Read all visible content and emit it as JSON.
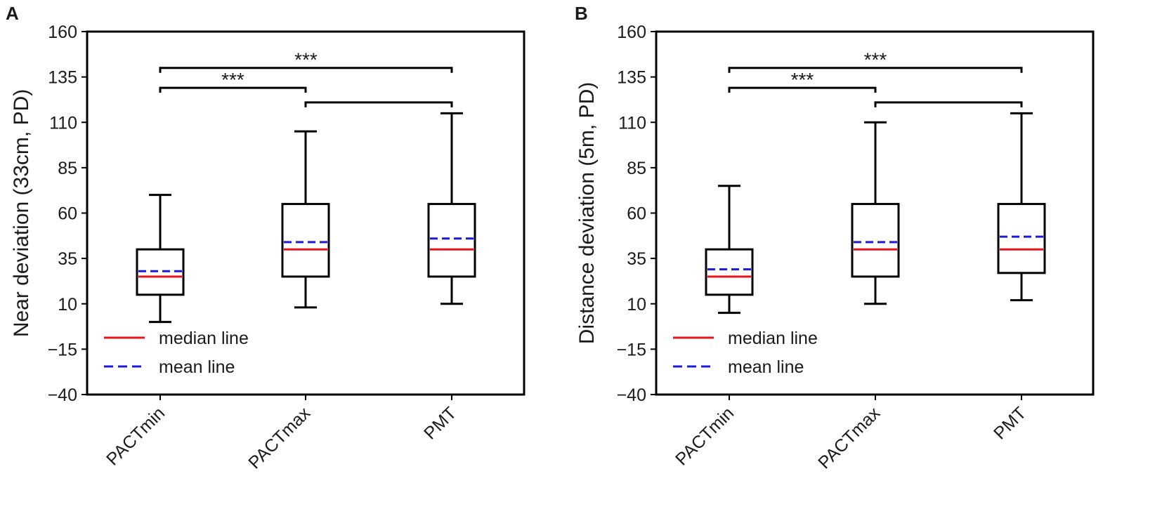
{
  "chart_data": [
    {
      "panel_label": "A",
      "type": "box",
      "ylabel": "Near deviation (33cm, PD)",
      "xlabel": "",
      "ylim": [
        -40,
        160
      ],
      "yticks": [
        -40,
        -15,
        10,
        35,
        60,
        85,
        110,
        135,
        160
      ],
      "ytick_labels": [
        "−40",
        "−15",
        "10",
        "35",
        "60",
        "85",
        "110",
        "135",
        "160"
      ],
      "categories": [
        "PACTmin",
        "PACTmax",
        "PMT"
      ],
      "boxes": [
        {
          "name": "PACTmin",
          "whisker_low": 0,
          "q1": 15,
          "median": 25,
          "mean": 28,
          "q3": 40,
          "whisker_high": 70
        },
        {
          "name": "PACTmax",
          "whisker_low": 8,
          "q1": 25,
          "median": 40,
          "mean": 44,
          "q3": 65,
          "whisker_high": 105
        },
        {
          "name": "PMT",
          "whisker_low": 10,
          "q1": 25,
          "median": 40,
          "mean": 46,
          "q3": 65,
          "whisker_high": 115
        }
      ],
      "significance": [
        {
          "from": "PACTmin",
          "to": "PMT",
          "y": 140,
          "label": "***"
        },
        {
          "from": "PACTmin",
          "to": "PACTmax",
          "y": 129,
          "label": "***"
        },
        {
          "from": "PACTmax",
          "to": "PMT",
          "y": 121,
          "label": ""
        }
      ],
      "legend": {
        "placement": "lower-left",
        "entries": [
          {
            "label": "median line",
            "color": "#e8141c",
            "style": "solid"
          },
          {
            "label": "mean line",
            "color": "#1a1adc",
            "style": "dashed"
          }
        ]
      }
    },
    {
      "panel_label": "B",
      "type": "box",
      "ylabel": "Distance deviation (5m, PD)",
      "xlabel": "",
      "ylim": [
        -40,
        160
      ],
      "yticks": [
        -40,
        -15,
        10,
        35,
        60,
        85,
        110,
        135,
        160
      ],
      "ytick_labels": [
        "−40",
        "−15",
        "10",
        "35",
        "60",
        "85",
        "110",
        "135",
        "160"
      ],
      "categories": [
        "PACTmin",
        "PACTmax",
        "PMT"
      ],
      "boxes": [
        {
          "name": "PACTmin",
          "whisker_low": 5,
          "q1": 15,
          "median": 25,
          "mean": 29,
          "q3": 40,
          "whisker_high": 75
        },
        {
          "name": "PACTmax",
          "whisker_low": 10,
          "q1": 25,
          "median": 40,
          "mean": 44,
          "q3": 65,
          "whisker_high": 110
        },
        {
          "name": "PMT",
          "whisker_low": 12,
          "q1": 27,
          "median": 40,
          "mean": 47,
          "q3": 65,
          "whisker_high": 115
        }
      ],
      "significance": [
        {
          "from": "PACTmin",
          "to": "PMT",
          "y": 140,
          "label": "***"
        },
        {
          "from": "PACTmin",
          "to": "PACTmax",
          "y": 129,
          "label": "***"
        },
        {
          "from": "PACTmax",
          "to": "PMT",
          "y": 121,
          "label": ""
        }
      ],
      "legend": {
        "placement": "lower-left",
        "entries": [
          {
            "label": "median line",
            "color": "#e8141c",
            "style": "solid"
          },
          {
            "label": "mean line",
            "color": "#1a1adc",
            "style": "dashed"
          }
        ]
      }
    }
  ],
  "colors": {
    "median": "#e8141c",
    "mean": "#1a1adc",
    "axis": "#000000"
  }
}
